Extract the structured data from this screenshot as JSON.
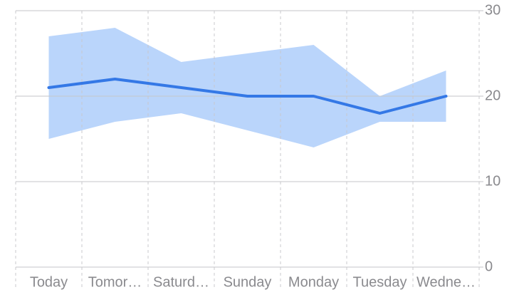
{
  "chart_data": {
    "type": "line",
    "categories": [
      "Today",
      "Tomor…",
      "Saturd…",
      "Sunday",
      "Monday",
      "Tuesday",
      "Wedne…"
    ],
    "series": [
      {
        "color": "#3478e6",
        "values": [
          21,
          22,
          21,
          20,
          20,
          18,
          20
        ]
      }
    ],
    "band": {
      "color": "#bad5fb",
      "high": [
        27,
        28,
        24,
        25,
        26,
        20,
        23
      ],
      "low": [
        15,
        17,
        18,
        16,
        14,
        17,
        17
      ]
    },
    "ylim": [
      0,
      30
    ],
    "yticks": [
      0,
      10,
      20,
      30
    ],
    "grid": true
  }
}
